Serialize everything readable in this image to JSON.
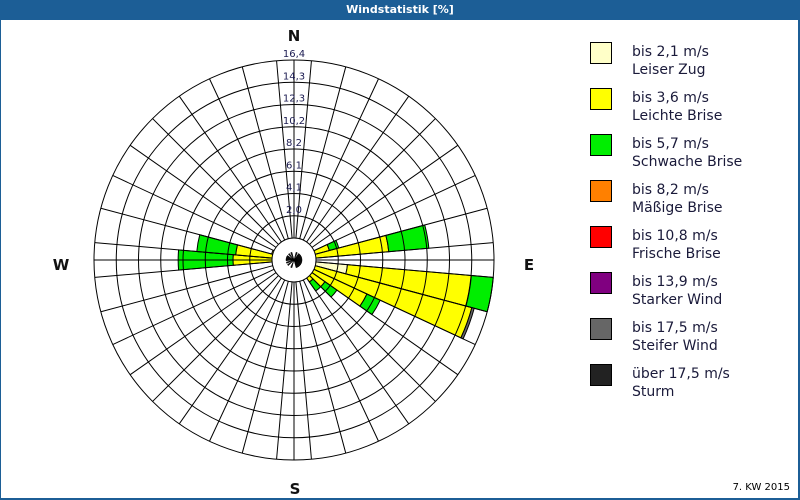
{
  "header": {
    "title": "Windstatistik [%]"
  },
  "footer": {
    "period": "7. KW 2015"
  },
  "compass": {
    "n": "N",
    "e": "E",
    "s": "S",
    "w": "W"
  },
  "legend": [
    {
      "line1": "bis 2,1 m/s",
      "line2": "Leiser Zug",
      "color": "#ffffc8"
    },
    {
      "line1": "bis 3,6 m/s",
      "line2": "Leichte Brise",
      "color": "#ffff00"
    },
    {
      "line1": "bis 5,7 m/s",
      "line2": "Schwache Brise",
      "color": "#00ee00"
    },
    {
      "line1": "bis 8,2 m/s",
      "line2": "Mäßige Brise",
      "color": "#ff8000"
    },
    {
      "line1": "bis 10,8 m/s",
      "line2": "Frische Brise",
      "color": "#ff0000"
    },
    {
      "line1": "bis 13,9 m/s",
      "line2": "Starker Wind",
      "color": "#800080"
    },
    {
      "line1": "bis 17,5 m/s",
      "line2": "Steifer Wind",
      "color": "#666666"
    },
    {
      "line1": "über 17,5 m/s",
      "line2": "Sturm",
      "color": "#222222"
    }
  ],
  "chart_data": {
    "type": "windrose",
    "title": "Windstatistik [%]",
    "subtitle": "7. KW 2015",
    "unit": "%",
    "rings": [
      "2,0",
      "4,1",
      "6,1",
      "8,2",
      "10,2",
      "12,3",
      "14,3",
      "16,4"
    ],
    "rmax": 16.4,
    "sector_width_deg": 10,
    "categories": [
      "bis 2,1 m/s",
      "bis 3,6 m/s",
      "bis 5,7 m/s",
      "bis 8,2 m/s",
      "bis 10,8 m/s",
      "bis 13,9 m/s",
      "bis 17,5 m/s",
      "über 17,5 m/s"
    ],
    "series": [
      {
        "direction_deg": 60,
        "values": [
          0.2,
          0.6,
          0.3,
          0,
          0,
          0,
          0,
          0
        ]
      },
      {
        "direction_deg": 70,
        "values": [
          0.2,
          2.8,
          0.8,
          0,
          0,
          0,
          0,
          0
        ]
      },
      {
        "direction_deg": 80,
        "values": [
          0.2,
          7.6,
          3.3,
          0,
          0,
          0,
          0,
          0
        ]
      },
      {
        "direction_deg": 90,
        "values": [
          1.5,
          0.2,
          0,
          0,
          0,
          0,
          0,
          0
        ]
      },
      {
        "direction_deg": 100,
        "values": [
          4.4,
          10.2,
          1.8,
          0,
          0,
          0,
          0,
          0
        ]
      },
      {
        "direction_deg": 110,
        "values": [
          0.3,
          14.8,
          0,
          0,
          0,
          0,
          0.2,
          0
        ]
      },
      {
        "direction_deg": 120,
        "values": [
          0.3,
          6.3,
          1.2,
          0,
          0,
          0,
          0,
          0
        ]
      },
      {
        "direction_deg": 130,
        "values": [
          0.2,
          2.9,
          1.2,
          0,
          0,
          0,
          0,
          0
        ]
      },
      {
        "direction_deg": 140,
        "values": [
          0.2,
          2.0,
          0.9,
          0,
          0,
          0,
          0,
          0
        ]
      },
      {
        "direction_deg": 150,
        "values": [
          0.2,
          0.8,
          0.5,
          0,
          0,
          0,
          0,
          0
        ]
      },
      {
        "direction_deg": 160,
        "values": [
          0.3,
          0.3,
          0,
          0,
          0,
          0,
          0,
          0
        ]
      },
      {
        "direction_deg": 200,
        "values": [
          0.3,
          0.1,
          0,
          0,
          0,
          0,
          0,
          0
        ]
      },
      {
        "direction_deg": 230,
        "values": [
          0.4,
          0.1,
          0,
          0,
          0,
          0,
          0,
          0
        ]
      },
      {
        "direction_deg": 250,
        "values": [
          0.4,
          0.2,
          0,
          0,
          0,
          0,
          0,
          0
        ]
      },
      {
        "direction_deg": 270,
        "values": [
          0.3,
          4.7,
          4.5,
          0,
          0,
          0,
          0,
          0
        ]
      },
      {
        "direction_deg": 280,
        "values": [
          0.3,
          4.5,
          3.2,
          0,
          0,
          0,
          0,
          0
        ]
      },
      {
        "direction_deg": 290,
        "values": [
          0.3,
          1.6,
          0,
          0,
          0,
          0,
          0,
          0
        ]
      },
      {
        "direction_deg": 300,
        "values": [
          0.2,
          0.5,
          0.4,
          0,
          0,
          0,
          0,
          0
        ]
      },
      {
        "direction_deg": 320,
        "values": [
          0.3,
          0.1,
          0,
          0,
          0,
          0,
          0,
          0
        ]
      },
      {
        "direction_deg": 340,
        "values": [
          0.3,
          0,
          0,
          0,
          0,
          0,
          0,
          0
        ]
      },
      {
        "direction_deg": 20,
        "values": [
          0.3,
          0,
          0,
          0,
          0,
          0,
          0,
          0
        ]
      },
      {
        "direction_deg": 40,
        "values": [
          0.2,
          0.3,
          0,
          0,
          0,
          0,
          0,
          0
        ]
      },
      {
        "direction_deg": 50,
        "values": [
          0.2,
          0.7,
          0,
          0,
          0,
          0,
          0,
          0
        ]
      }
    ],
    "legend_position": "right",
    "grid": true
  }
}
